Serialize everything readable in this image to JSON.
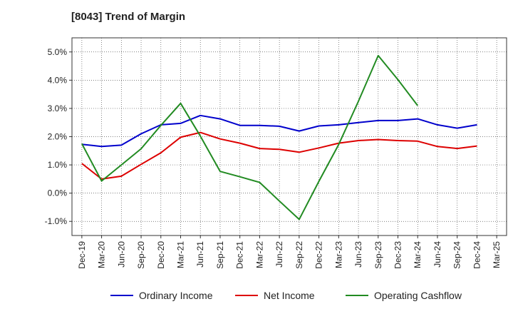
{
  "chart_data": {
    "type": "line",
    "title": "[8043]  Trend of Margin",
    "xlabel": "",
    "ylabel": "",
    "ylim": [
      -1.5,
      5.5
    ],
    "yticks": [
      -1.0,
      0.0,
      1.0,
      2.0,
      3.0,
      4.0,
      5.0
    ],
    "ytick_labels": [
      "-1.0%",
      "0.0%",
      "1.0%",
      "2.0%",
      "3.0%",
      "4.0%",
      "5.0%"
    ],
    "categories": [
      "Dec-19",
      "Mar-20",
      "Jun-20",
      "Sep-20",
      "Dec-20",
      "Mar-21",
      "Jun-21",
      "Sep-21",
      "Dec-21",
      "Mar-22",
      "Jun-22",
      "Sep-22",
      "Dec-22",
      "Mar-23",
      "Jun-23",
      "Sep-23",
      "Dec-23",
      "Mar-24",
      "Jun-24",
      "Sep-24",
      "Dec-24",
      "Mar-25"
    ],
    "grid": true,
    "legend_position": "bottom",
    "series": [
      {
        "name": "Ordinary Income",
        "color": "#0000cc",
        "values": [
          1.73,
          1.65,
          1.7,
          2.1,
          2.42,
          2.47,
          2.75,
          2.63,
          2.4,
          2.4,
          2.37,
          2.2,
          2.38,
          2.42,
          2.5,
          2.57,
          2.57,
          2.63,
          2.42,
          2.3,
          2.42,
          null
        ]
      },
      {
        "name": "Net Income",
        "color": "#dd0000",
        "values": [
          1.05,
          0.5,
          0.6,
          1.02,
          1.43,
          1.98,
          2.15,
          1.92,
          1.77,
          1.58,
          1.55,
          1.45,
          1.6,
          1.77,
          1.86,
          1.9,
          1.86,
          1.84,
          1.65,
          1.58,
          1.67,
          null
        ]
      },
      {
        "name": "Operating Cashflow",
        "color": "#228b22",
        "values": [
          1.75,
          0.43,
          1.0,
          1.57,
          2.4,
          3.18,
          2.02,
          0.77,
          0.58,
          0.38,
          -0.28,
          -0.93,
          0.42,
          1.72,
          3.25,
          4.87,
          4.02,
          3.1,
          null,
          null,
          null,
          null
        ]
      }
    ]
  }
}
